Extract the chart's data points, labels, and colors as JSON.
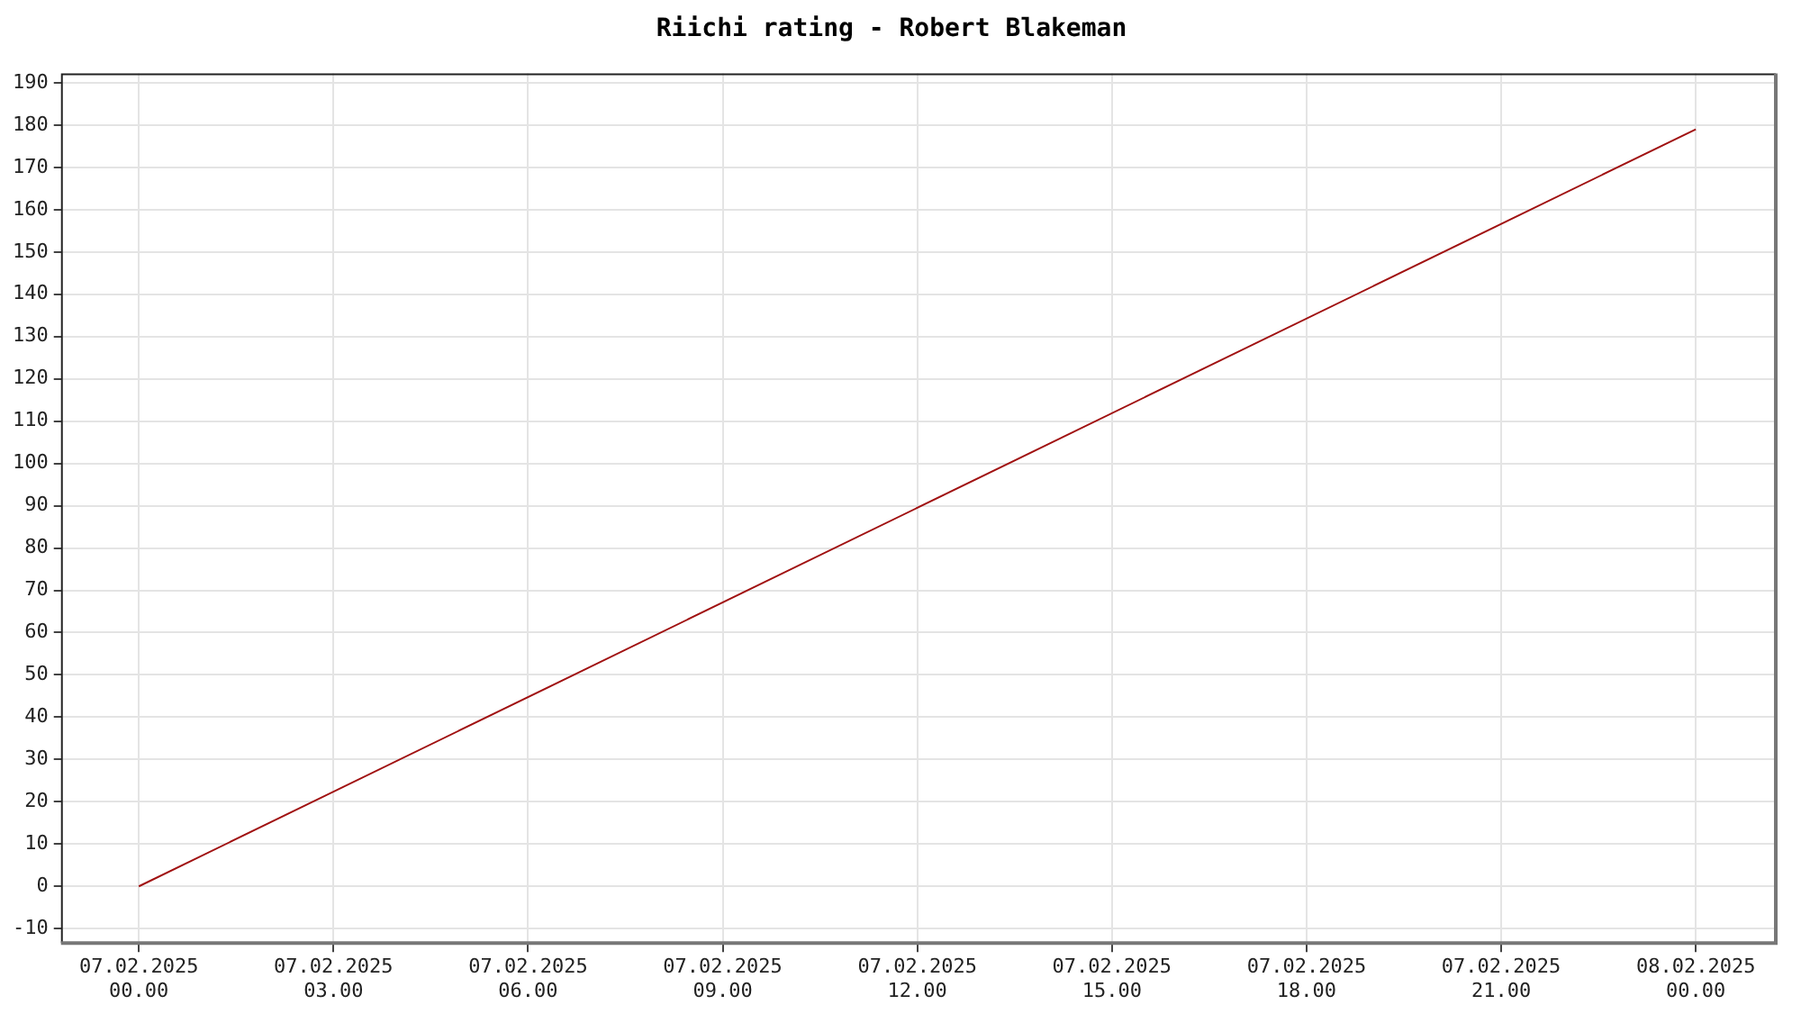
{
  "chart_data": {
    "type": "line",
    "title": "Riichi rating - Robert Blakeman",
    "x": [
      "2025-02-07T00:00",
      "2025-02-08T00:00"
    ],
    "series": [
      {
        "color": "#a01010",
        "values": [
          0,
          179
        ]
      }
    ],
    "xlim": [
      "2025-02-06T22:48",
      "2025-02-08T01:14"
    ],
    "xticks": [
      {
        "value": "2025-02-07T00:00",
        "label": "07.02.2025\n00.00"
      },
      {
        "value": "2025-02-07T03:00",
        "label": "07.02.2025\n03.00"
      },
      {
        "value": "2025-02-07T06:00",
        "label": "07.02.2025\n06.00"
      },
      {
        "value": "2025-02-07T09:00",
        "label": "07.02.2025\n09.00"
      },
      {
        "value": "2025-02-07T12:00",
        "label": "07.02.2025\n12.00"
      },
      {
        "value": "2025-02-07T15:00",
        "label": "07.02.2025\n15.00"
      },
      {
        "value": "2025-02-07T18:00",
        "label": "07.02.2025\n18.00"
      },
      {
        "value": "2025-02-07T21:00",
        "label": "07.02.2025\n21.00"
      },
      {
        "value": "2025-02-08T00:00",
        "label": "08.02.2025\n00.00"
      }
    ],
    "ylim": [
      -13.4,
      192.2
    ],
    "yticks": [
      -10,
      0,
      10,
      20,
      30,
      40,
      50,
      60,
      70,
      80,
      90,
      100,
      110,
      120,
      130,
      140,
      150,
      160,
      170,
      180,
      190
    ],
    "grid": true,
    "legend": false,
    "marker": "none",
    "line_style": "solid"
  }
}
